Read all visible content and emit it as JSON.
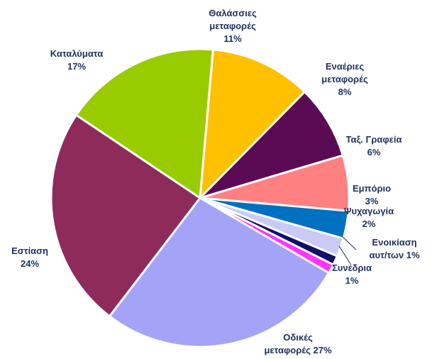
{
  "chart_data": {
    "type": "pie",
    "title": "",
    "slices": [
      {
        "label_lines": [
          "Θαλάσσιες",
          "μεταφορές",
          "11%"
        ],
        "value": 11,
        "color": "#ffc000"
      },
      {
        "label_lines": [
          "Εναέριες",
          "μεταφορές",
          "8%"
        ],
        "value": 8,
        "color": "#5a0a52"
      },
      {
        "label_lines": [
          "Ταξ. Γραφεία",
          "6%"
        ],
        "value": 6,
        "color": "#ff8080"
      },
      {
        "label_lines": [
          "Εμπόριο",
          "3%"
        ],
        "value": 3,
        "color": "#0070c0"
      },
      {
        "label_lines": [
          "Ψυχαγωγία",
          "2%"
        ],
        "value": 2,
        "color": "#c9caf5"
      },
      {
        "label_lines": [
          "Ενοικίαση",
          "αυτ/των 1%"
        ],
        "value": 1,
        "color": "#10106a"
      },
      {
        "label_lines": [
          "Συνέδρια",
          "1%"
        ],
        "value": 1,
        "color": "#ff33ff"
      },
      {
        "label_lines": [
          "Οδικές",
          "μεταφορές 27%"
        ],
        "value": 27,
        "color": "#a3a3f7"
      },
      {
        "label_lines": [
          "Εστίαση",
          "24%"
        ],
        "value": 24,
        "color": "#8e2b5b"
      },
      {
        "label_lines": [
          "Καταλύματα",
          "17%"
        ],
        "value": 17,
        "color": "#99cc00"
      }
    ]
  }
}
